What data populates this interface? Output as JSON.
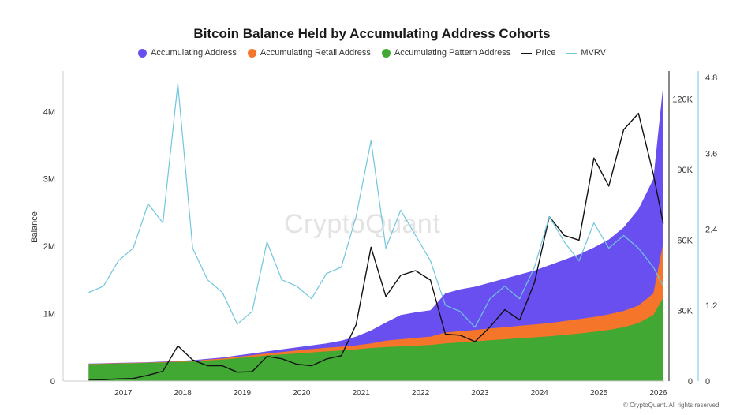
{
  "chart_data": {
    "type": "area",
    "title": "Bitcoin Balance Held by Accumulating Address Cohorts",
    "ylabel": "Balance",
    "x": [
      "2016-06",
      "2016-09",
      "2016-12",
      "2017-03",
      "2017-06",
      "2017-09",
      "2017-12",
      "2018-03",
      "2018-06",
      "2018-09",
      "2018-12",
      "2019-03",
      "2019-06",
      "2019-09",
      "2019-12",
      "2020-03",
      "2020-06",
      "2020-09",
      "2020-12",
      "2021-03",
      "2021-06",
      "2021-09",
      "2021-12",
      "2022-03",
      "2022-06",
      "2022-09",
      "2022-12",
      "2023-03",
      "2023-06",
      "2023-09",
      "2023-12",
      "2024-03",
      "2024-06",
      "2024-09",
      "2024-12",
      "2025-03",
      "2025-06",
      "2025-09",
      "2025-12",
      "2026-02"
    ],
    "x_ticks": [
      "2017",
      "2018",
      "2019",
      "2020",
      "2021",
      "2022",
      "2023",
      "2024",
      "2025",
      "2026"
    ],
    "y_left_ticks": [
      "0",
      "1M",
      "2M",
      "3M",
      "4M"
    ],
    "y_left_range": [
      0,
      4600000
    ],
    "y_price_ticks": [
      "0",
      "30K",
      "60K",
      "90K",
      "120K"
    ],
    "y_price_range": [
      0,
      132000
    ],
    "y_mvrv_ticks": [
      "0",
      "1.2",
      "2.4",
      "3.6",
      "4.8"
    ],
    "y_mvrv_range": [
      0,
      4.9
    ],
    "grid": false,
    "legend_position": "top",
    "series": [
      {
        "name": "Accumulating Address",
        "kind": "area",
        "color": "#6a4ff0",
        "values": [
          260000,
          265000,
          270000,
          275000,
          280000,
          290000,
          300000,
          310000,
          330000,
          350000,
          380000,
          410000,
          440000,
          470000,
          500000,
          530000,
          560000,
          600000,
          660000,
          750000,
          870000,
          980000,
          1020000,
          1050000,
          1300000,
          1360000,
          1400000,
          1460000,
          1520000,
          1580000,
          1640000,
          1720000,
          1800000,
          1880000,
          1980000,
          2100000,
          2280000,
          2550000,
          3000000,
          4400000
        ]
      },
      {
        "name": "Accumulating Retail Address",
        "kind": "area",
        "color": "#f5762a",
        "values": [
          255000,
          260000,
          265000,
          270000,
          275000,
          283000,
          292000,
          300000,
          318000,
          335000,
          360000,
          385000,
          410000,
          430000,
          455000,
          475000,
          495000,
          510000,
          530000,
          560000,
          600000,
          620000,
          640000,
          660000,
          720000,
          740000,
          760000,
          780000,
          800000,
          820000,
          840000,
          860000,
          890000,
          920000,
          950000,
          990000,
          1040000,
          1120000,
          1300000,
          2050000
        ]
      },
      {
        "name": "Accumulating Pattern Address",
        "kind": "area",
        "color": "#40a833",
        "values": [
          250000,
          255000,
          260000,
          265000,
          270000,
          276000,
          284000,
          290000,
          305000,
          320000,
          340000,
          360000,
          380000,
          395000,
          410000,
          425000,
          440000,
          455000,
          470000,
          490000,
          505000,
          515000,
          525000,
          535000,
          560000,
          575000,
          590000,
          605000,
          620000,
          635000,
          650000,
          665000,
          685000,
          705000,
          730000,
          760000,
          800000,
          860000,
          980000,
          1240000
        ]
      },
      {
        "name": "Price",
        "kind": "line",
        "color": "#111111",
        "values": [
          650,
          600,
          950,
          1100,
          2500,
          4200,
          15000,
          9000,
          6500,
          6500,
          3800,
          4000,
          10500,
          9500,
          7200,
          6500,
          9400,
          10800,
          24000,
          57000,
          36000,
          45000,
          47000,
          43000,
          20000,
          19500,
          16800,
          23000,
          30400,
          26000,
          42000,
          70000,
          62000,
          60000,
          95000,
          83000,
          107000,
          114000,
          88000,
          67000
        ]
      },
      {
        "name": "MVRV",
        "kind": "line",
        "color": "#6fc6dd",
        "values": [
          1.4,
          1.5,
          1.9,
          2.1,
          2.8,
          2.5,
          4.7,
          2.1,
          1.6,
          1.4,
          0.9,
          1.1,
          2.2,
          1.6,
          1.5,
          1.3,
          1.7,
          1.8,
          2.6,
          3.8,
          2.1,
          2.7,
          2.3,
          1.9,
          1.2,
          1.1,
          0.85,
          1.3,
          1.5,
          1.3,
          1.8,
          2.6,
          2.2,
          1.9,
          2.5,
          2.1,
          2.3,
          2.1,
          1.8,
          1.5
        ]
      }
    ]
  },
  "legend": {
    "items": [
      {
        "label": "Accumulating Address",
        "color": "#6a4ff0",
        "marker": "dot"
      },
      {
        "label": "Accumulating Retail Address",
        "color": "#f5762a",
        "marker": "dot"
      },
      {
        "label": "Accumulating Pattern Address",
        "color": "#40a833",
        "marker": "dot"
      },
      {
        "label": "Price",
        "color": "#111111",
        "marker": "line"
      },
      {
        "label": "MVRV",
        "color": "#6fc6dd",
        "marker": "line"
      }
    ]
  },
  "watermark": "CryptoQuant",
  "credit": "© CryptoQuant. All rights reserved"
}
